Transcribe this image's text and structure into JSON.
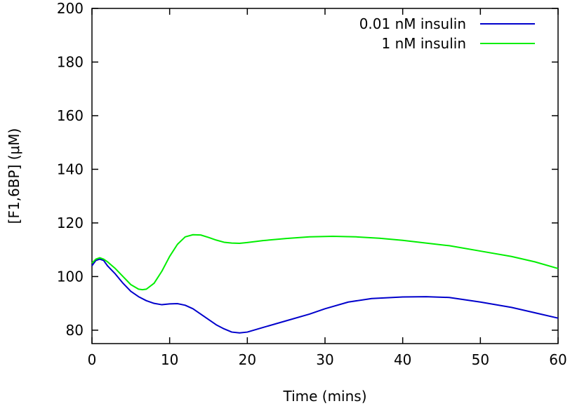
{
  "chart_data": {
    "type": "line",
    "title": "",
    "xlabel": "Time (mins)",
    "ylabel": "[F1,6BP] (μM)",
    "xlim": [
      0,
      60
    ],
    "ylim": [
      75,
      200
    ],
    "xticks": [
      0,
      10,
      20,
      30,
      40,
      50,
      60
    ],
    "yticks": [
      80,
      100,
      120,
      140,
      160,
      180,
      200
    ],
    "xtick_labels": [
      "0",
      "10",
      "20",
      "30",
      "40",
      "50",
      "60"
    ],
    "ytick_labels": [
      "80",
      "100",
      "120",
      "140",
      "160",
      "180",
      "200"
    ],
    "grid": false,
    "legend_position": "top-right",
    "series": [
      {
        "name": "0.01 nM insulin",
        "color": "#0000cc",
        "x": [
          0,
          0.5,
          1,
          1.5,
          2,
          3,
          4,
          5,
          6,
          7,
          8,
          9,
          10,
          11,
          12,
          13,
          14,
          15,
          16,
          17,
          18,
          19,
          20,
          22,
          25,
          28,
          30,
          33,
          36,
          40,
          43,
          46,
          50,
          54,
          57,
          60
        ],
        "y": [
          104,
          106,
          106.5,
          106,
          104,
          101,
          97.5,
          94.5,
          92.5,
          91,
          90,
          89.5,
          89.8,
          89.9,
          89.3,
          88,
          86,
          84,
          82,
          80.5,
          79.3,
          79,
          79.3,
          81,
          83.5,
          86,
          88,
          90.5,
          91.8,
          92.4,
          92.5,
          92.2,
          90.5,
          88.5,
          86.5,
          84.5
        ]
      },
      {
        "name": "1 nM insulin",
        "color": "#00ee00",
        "x": [
          0,
          0.5,
          1,
          1.5,
          2,
          3,
          4,
          5,
          6,
          6.5,
          7,
          8,
          9,
          10,
          11,
          12,
          13,
          14,
          15,
          16,
          17,
          18,
          19,
          20,
          22,
          25,
          28,
          31,
          34,
          37,
          40,
          43,
          46,
          50,
          54,
          57,
          60
        ],
        "y": [
          105,
          106.5,
          107,
          106.5,
          105.5,
          103,
          100,
          97,
          95.3,
          95.1,
          95.3,
          97.5,
          102,
          107.5,
          112,
          114.8,
          115.6,
          115.5,
          114.6,
          113.6,
          112.8,
          112.5,
          112.4,
          112.7,
          113.4,
          114.2,
          114.8,
          115,
          114.8,
          114.3,
          113.5,
          112.5,
          111.5,
          109.5,
          107.5,
          105.5,
          103
        ]
      }
    ]
  }
}
